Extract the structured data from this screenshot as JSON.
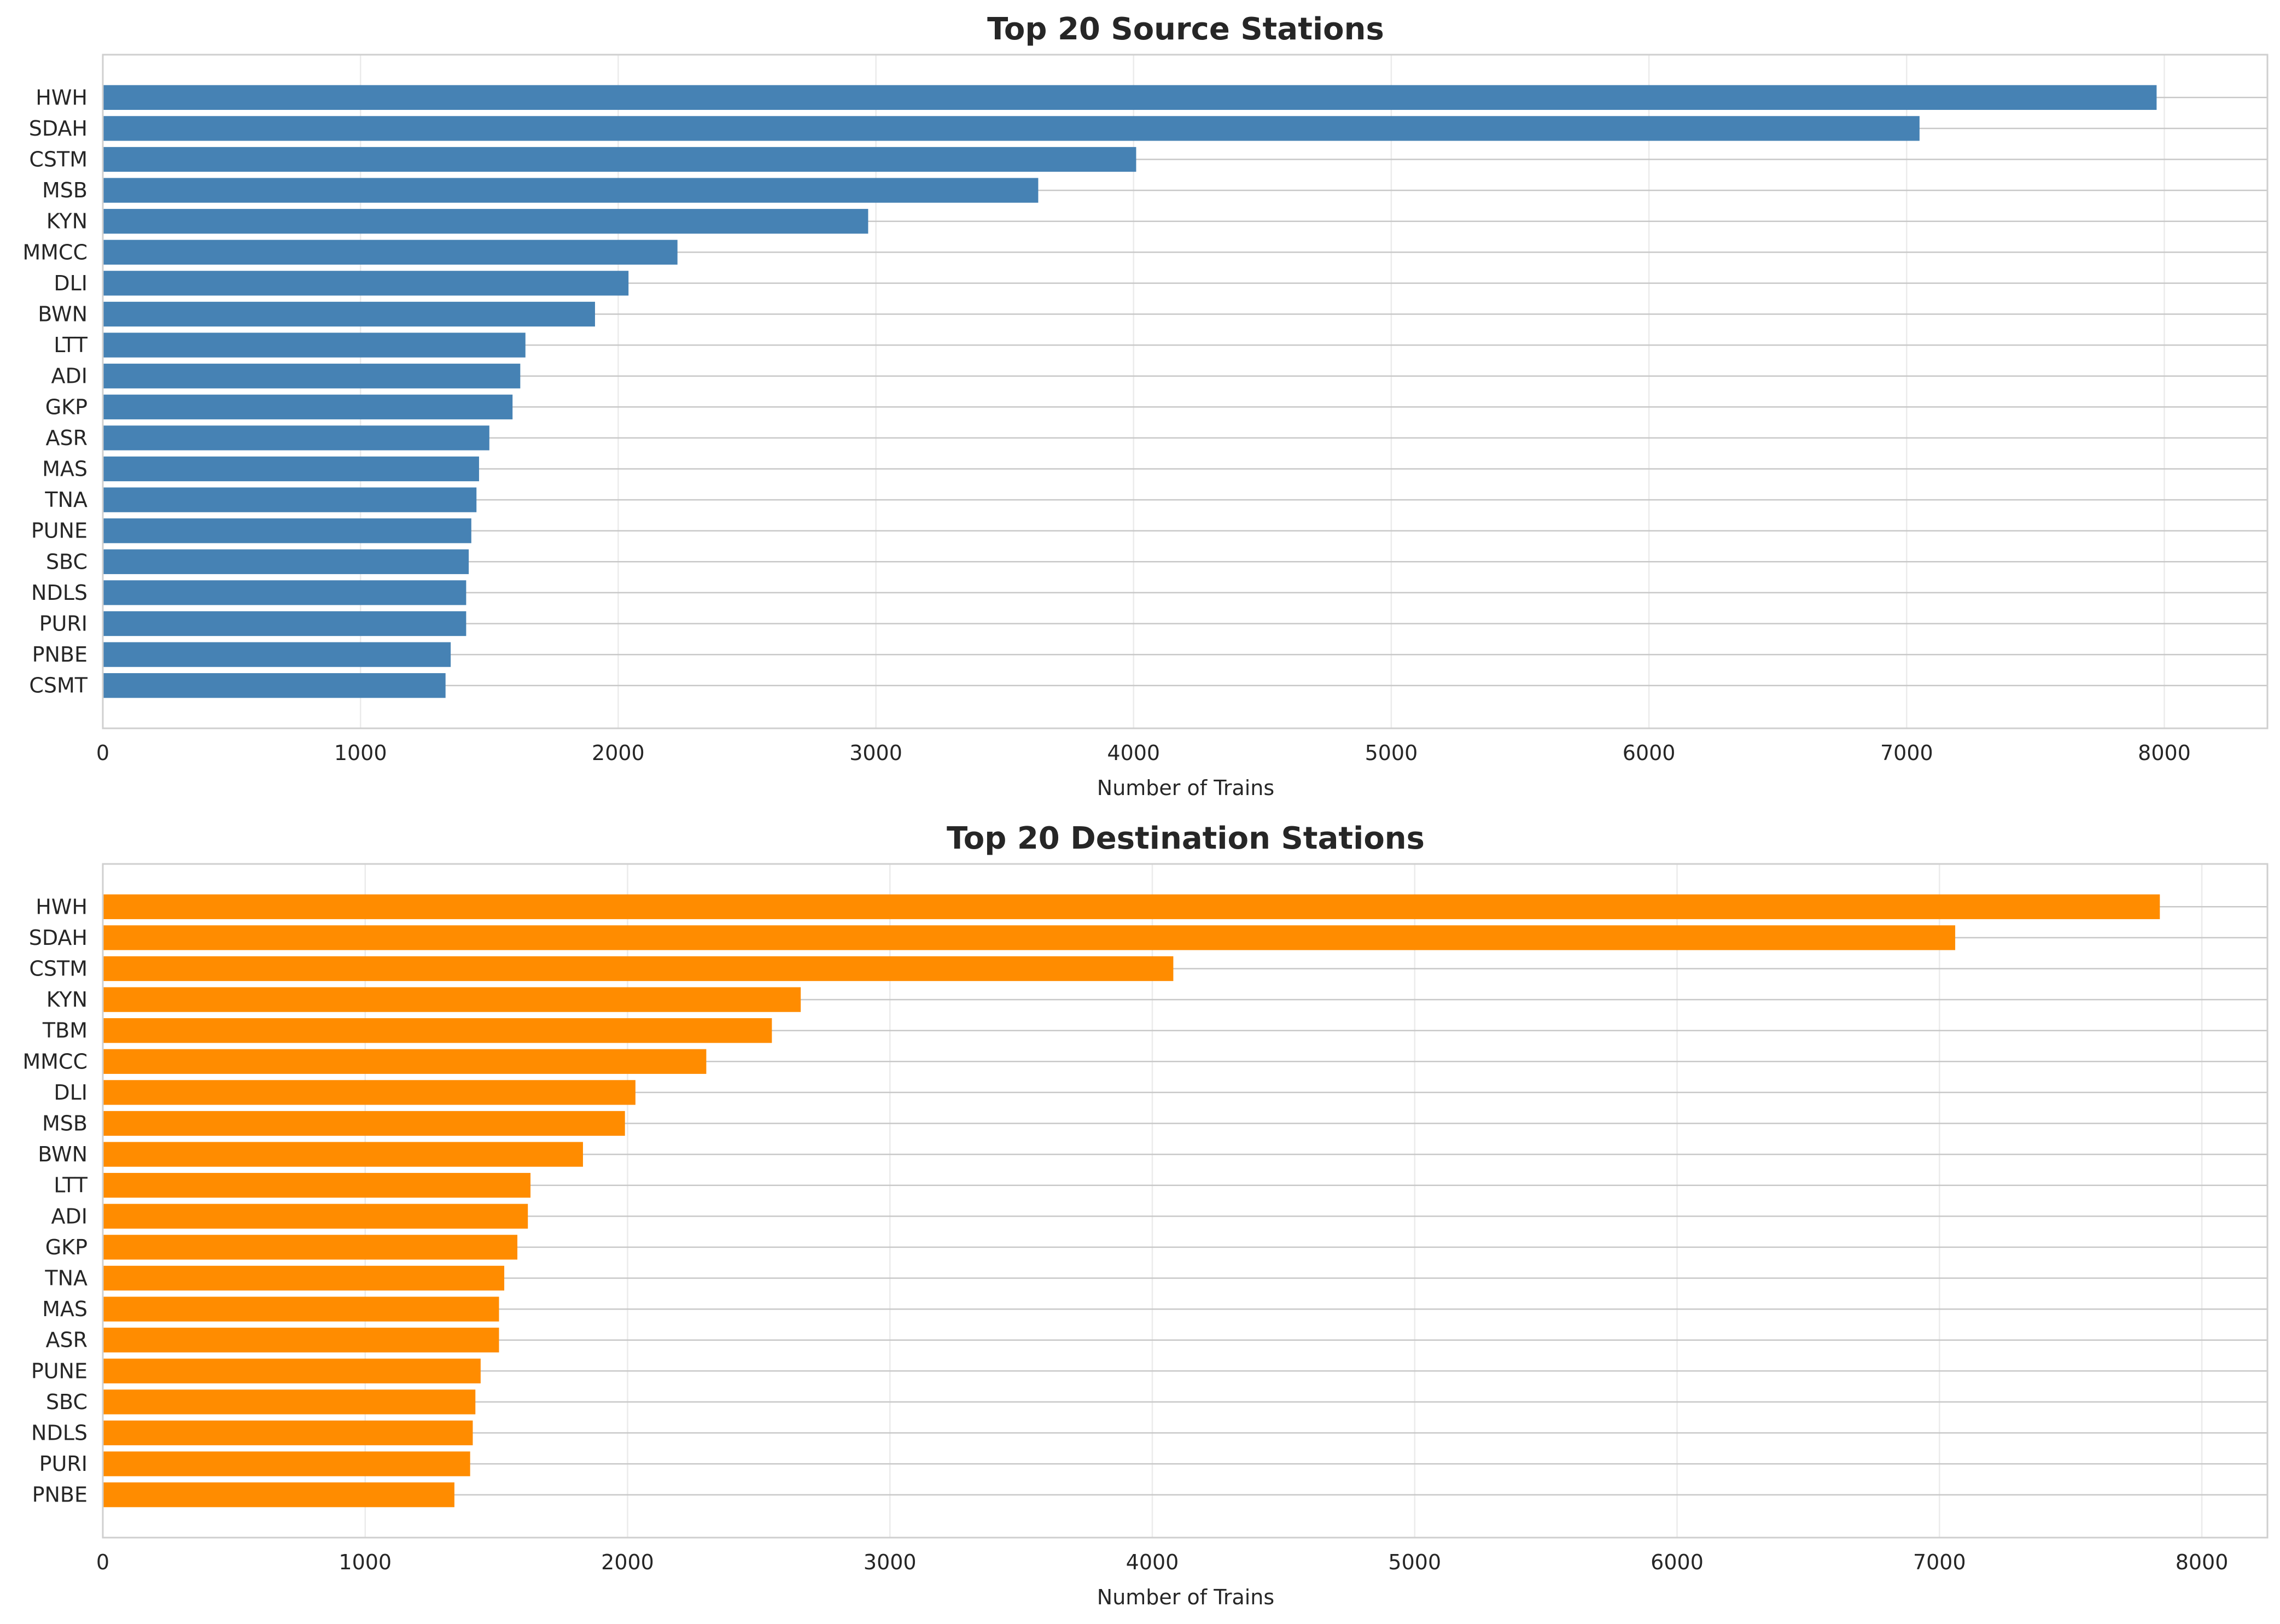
{
  "colors": {
    "source_bars": "#4682B4",
    "destination_bars": "#FF8C00",
    "text": "#262626"
  },
  "chart_data": [
    {
      "type": "bar",
      "orientation": "horizontal",
      "title": "Top 20 Source Stations",
      "xlabel": "Number of Trains",
      "ylabel": "",
      "xlim": [
        0,
        8400
      ],
      "xticks": [
        0,
        1000,
        2000,
        3000,
        4000,
        5000,
        6000,
        7000,
        8000
      ],
      "grid": true,
      "categories": [
        "HWH",
        "SDAH",
        "CSTM",
        "MSB",
        "KYN",
        "MMCC",
        "DLI",
        "BWN",
        "LTT",
        "ADI",
        "GKP",
        "ASR",
        "MAS",
        "TNA",
        "PUNE",
        "SBC",
        "NDLS",
        "PURI",
        "PNBE",
        "CSMT"
      ],
      "values": [
        7970,
        7050,
        4010,
        3630,
        2970,
        2230,
        2040,
        1910,
        1640,
        1620,
        1590,
        1500,
        1460,
        1450,
        1430,
        1420,
        1410,
        1410,
        1350,
        1330
      ],
      "color": "#4682B4"
    },
    {
      "type": "bar",
      "orientation": "horizontal",
      "title": "Top 20 Destination Stations",
      "xlabel": "Number of Trains",
      "ylabel": "",
      "xlim": [
        0,
        8250
      ],
      "xticks": [
        0,
        1000,
        2000,
        3000,
        4000,
        5000,
        6000,
        7000,
        8000
      ],
      "grid": true,
      "categories": [
        "HWH",
        "SDAH",
        "CSTM",
        "KYN",
        "TBM",
        "MMCC",
        "DLI",
        "MSB",
        "BWN",
        "LTT",
        "ADI",
        "GKP",
        "TNA",
        "MAS",
        "ASR",
        "PUNE",
        "SBC",
        "NDLS",
        "PURI",
        "PNBE"
      ],
      "values": [
        7840,
        7060,
        4080,
        2660,
        2550,
        2300,
        2030,
        1990,
        1830,
        1630,
        1620,
        1580,
        1530,
        1510,
        1510,
        1440,
        1420,
        1410,
        1400,
        1340
      ],
      "color": "#FF8C00"
    }
  ]
}
